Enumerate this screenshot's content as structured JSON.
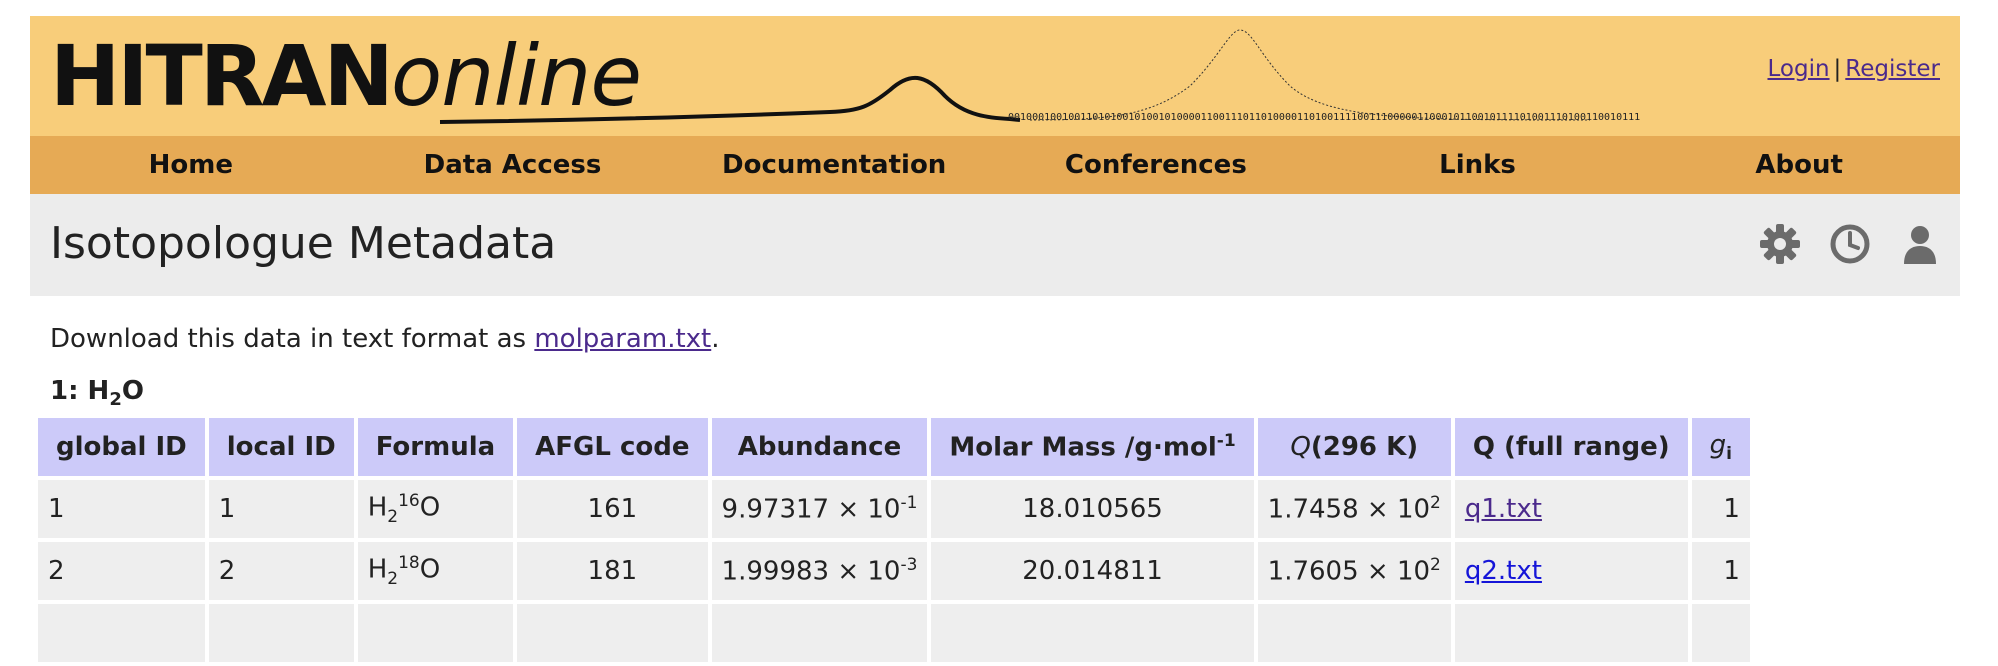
{
  "header": {
    "logo_bold": "HITRAN",
    "logo_italic": "online",
    "bits_text": "001000100100110101001010010100001100111011010000110100111100111000001100010110010111101001110100110010111",
    "login": "Login",
    "separator": "|",
    "register": "Register"
  },
  "nav": [
    "Home",
    "Data Access",
    "Documentation",
    "Conferences",
    "Links",
    "About"
  ],
  "page": {
    "title": "Isotopologue Metadata",
    "tools": [
      "gear-icon",
      "history-icon",
      "user-icon"
    ]
  },
  "download": {
    "prefix": "Download this data in text format as ",
    "link": "molparam.txt",
    "suffix": "."
  },
  "molecule": {
    "label": "1: H",
    "sub": "2",
    "rest": "O"
  },
  "table": {
    "headers": {
      "global_id": "global ID",
      "local_id": "local ID",
      "formula": "Formula",
      "afgl": "AFGL code",
      "abundance": "Abundance",
      "molar_mass": "Molar Mass /g·mol",
      "molar_mass_sup": "-1",
      "q296_q": "Q",
      "q296_rest": "(296 K)",
      "q_full": "Q (full range)",
      "g": "g",
      "g_sub": "i"
    },
    "rows": [
      {
        "global_id": "1",
        "local_id": "1",
        "formula_pre": "H",
        "formula_sub": "2",
        "formula_sup": "16",
        "formula_post": "O",
        "afgl": "161",
        "abundance_mant": "9.97317 × 10",
        "abundance_exp": "-1",
        "molar_mass": "18.010565",
        "q_mant": "1.7458 × 10",
        "q_exp": "2",
        "q_file": "q1.txt",
        "g": "1"
      },
      {
        "global_id": "2",
        "local_id": "2",
        "formula_pre": "H",
        "formula_sub": "2",
        "formula_sup": "18",
        "formula_post": "O",
        "afgl": "181",
        "abundance_mant": "1.99983 × 10",
        "abundance_exp": "-3",
        "molar_mass": "20.014811",
        "q_mant": "1.7605 × 10",
        "q_exp": "2",
        "q_file": "q2.txt",
        "g": "1"
      }
    ]
  },
  "colors": {
    "banner": "#f8cd7a",
    "nav": "#e6aa55",
    "title_bg": "#ececec",
    "table_header": "#cccaf9",
    "table_cell": "#eeeeee",
    "link_visited": "#4b2a8c",
    "link": "#1515d8"
  }
}
